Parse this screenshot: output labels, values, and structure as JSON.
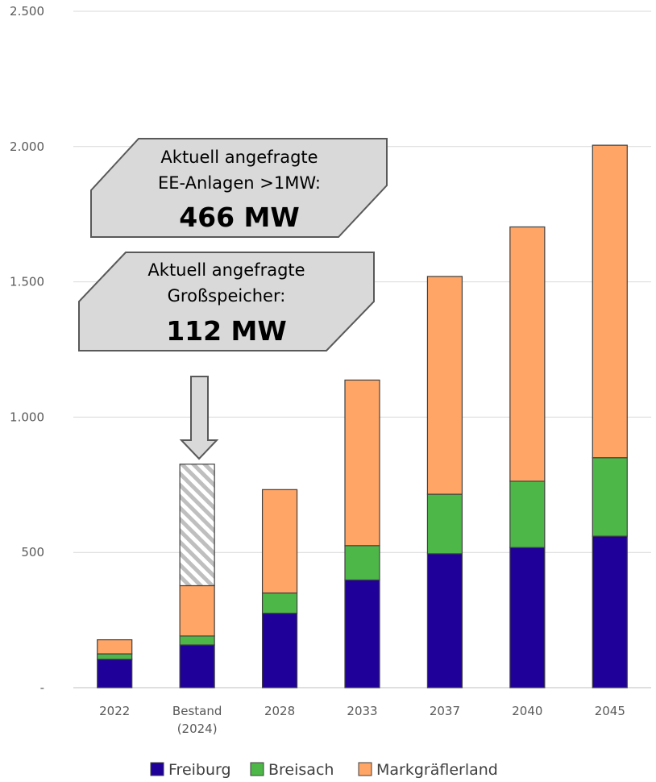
{
  "chart_data": {
    "type": "bar",
    "stacked": true,
    "categories": [
      [
        "2022"
      ],
      [
        "Bestand",
        "(2024)"
      ],
      [
        "2028"
      ],
      [
        "2033"
      ],
      [
        "2037"
      ],
      [
        "2040"
      ],
      [
        "2045"
      ]
    ],
    "series": [
      {
        "name": "Freiburg",
        "color": "#1F0099",
        "values": [
          105,
          158,
          275,
          398,
          495,
          518,
          560
        ]
      },
      {
        "name": "Breisach",
        "color": "#4DB848",
        "values": [
          20,
          33,
          75,
          127,
          220,
          245,
          290
        ]
      },
      {
        "name": "Markgräflerland",
        "color": "#FFA566",
        "values": [
          52,
          186,
          382,
          612,
          805,
          940,
          1155
        ]
      }
    ],
    "pending": {
      "category_index": 1,
      "base": 377,
      "top": 826,
      "pattern": "diagonal-hatch"
    },
    "y_ticks": [
      "-",
      "500",
      "1.000",
      "1.500",
      "2.000",
      "2.500"
    ],
    "y_tick_values": [
      0,
      500,
      1000,
      1500,
      2000,
      2500
    ],
    "ylim": [
      0,
      2500
    ],
    "grid": true,
    "legend_position": "bottom"
  },
  "callouts": [
    {
      "lines": [
        "Aktuell angefragte",
        "EE-Anlagen >1MW:"
      ],
      "value": "466 MW"
    },
    {
      "lines": [
        "Aktuell angefragte",
        "Großspeicher:"
      ],
      "value": "112 MW"
    }
  ],
  "colors": {
    "callout_fill": "#D9D9D9",
    "callout_stroke": "#595959",
    "grid": "#D9D9D9",
    "axis": "#BFBFBF"
  }
}
